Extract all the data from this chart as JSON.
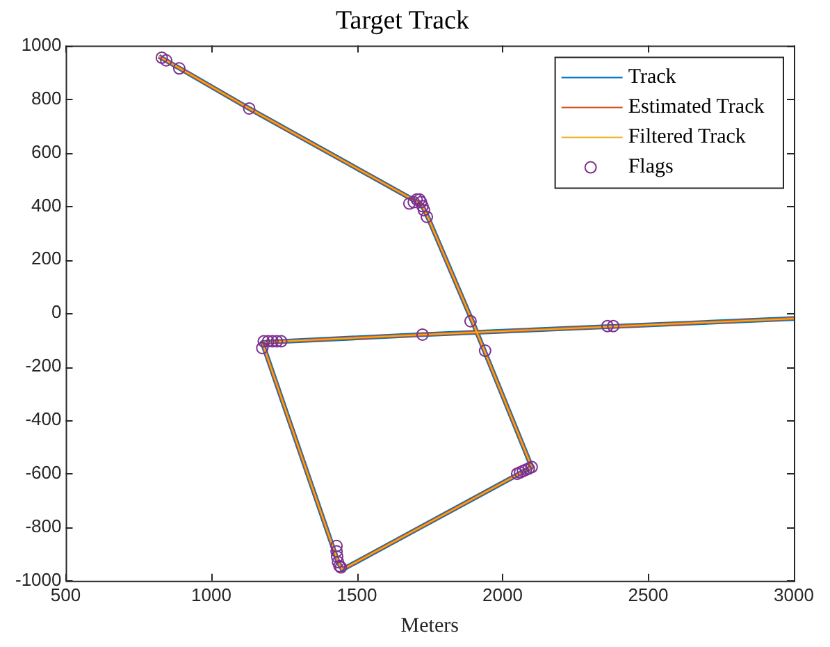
{
  "chart_data": {
    "type": "line",
    "title": "Target Track",
    "xlabel": "Meters",
    "xlim": [
      500,
      3000
    ],
    "xticks": [
      500,
      1000,
      1500,
      2000,
      2500,
      3000
    ],
    "ylim": [
      -1000,
      1000
    ],
    "yticks": [
      -1000,
      -800,
      -600,
      -400,
      -200,
      0,
      200,
      400,
      600,
      800,
      1000
    ],
    "grid": false,
    "legend": "top right",
    "series": [
      {
        "name": "Track",
        "color": "#0072bd",
        "marker": "none",
        "x": [
          820,
          1130,
          1700,
          1725,
          1745,
          1900,
          2100,
          1450,
          1435,
          1175,
          1250,
          1730,
          2370,
          3000
        ],
        "values": [
          960,
          765,
          420,
          400,
          355,
          -40,
          -575,
          -958,
          -930,
          -110,
          -105,
          -80,
          -50,
          -20
        ]
      },
      {
        "name": "Estimated Track",
        "color": "#d95319",
        "marker": "none",
        "x": [
          820,
          1130,
          1700,
          1725,
          1745,
          1900,
          2100,
          1450,
          1435,
          1175,
          1250,
          1730,
          2370,
          3000
        ],
        "values": [
          960,
          765,
          420,
          400,
          355,
          -40,
          -575,
          -958,
          -930,
          -110,
          -105,
          -80,
          -50,
          -20
        ]
      },
      {
        "name": "Filtered Track",
        "color": "#edb120",
        "marker": "none",
        "x": [
          820,
          1130,
          1700,
          1725,
          1745,
          1900,
          2100,
          1450,
          1435,
          1175,
          1250,
          1730,
          2370,
          3000
        ],
        "values": [
          960,
          765,
          420,
          400,
          355,
          -40,
          -575,
          -958,
          -930,
          -110,
          -105,
          -80,
          -50,
          -20
        ]
      },
      {
        "name": "Flags",
        "color": "#7e2f8e",
        "type": "scatter",
        "marker": "circle",
        "x": [
          830,
          845,
          890,
          1130,
          1680,
          1695,
          1705,
          1715,
          1720,
          1725,
          1730,
          1740,
          1890,
          1940,
          2050,
          2060,
          2070,
          2080,
          2090,
          2100,
          1430,
          1430,
          1432,
          1435,
          1440,
          1445,
          1175,
          1180,
          1195,
          1210,
          1225,
          1240,
          1725,
          2360,
          2380
        ],
        "values": [
          955,
          945,
          915,
          765,
          410,
          415,
          425,
          425,
          415,
          400,
          385,
          360,
          -30,
          -140,
          -600,
          -595,
          -590,
          -585,
          -580,
          -575,
          -870,
          -890,
          -910,
          -930,
          -945,
          -950,
          -130,
          -105,
          -105,
          -105,
          -105,
          -105,
          -80,
          -48,
          -48
        ]
      }
    ]
  }
}
